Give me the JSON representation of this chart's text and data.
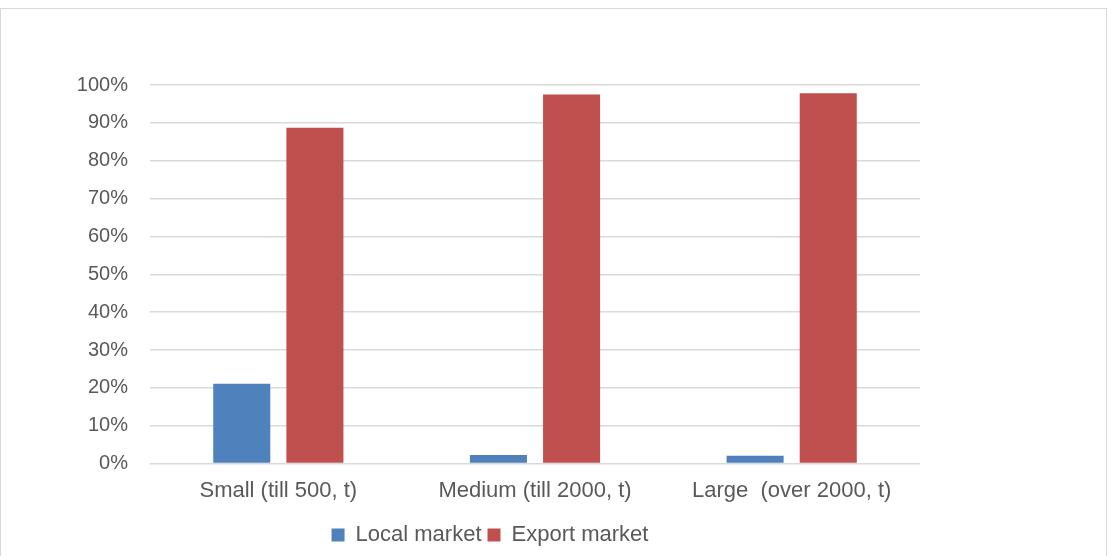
{
  "chart_data": {
    "type": "bar",
    "categories": [
      "Small (till 500, t)",
      "Medium (till 2000, t)",
      "Large  (over 2000, t)"
    ],
    "series": [
      {
        "name": "Local market",
        "color": "#4f81bd",
        "values": [
          21.1,
          2.3,
          2.1
        ]
      },
      {
        "name": "Export market",
        "color": "#c0504d",
        "values": [
          88.7,
          97.5,
          97.8
        ]
      }
    ],
    "ylim": [
      0,
      100
    ],
    "yticks": [
      {
        "value": 0,
        "label": "0%"
      },
      {
        "value": 10,
        "label": "10%"
      },
      {
        "value": 20,
        "label": "20%"
      },
      {
        "value": 30,
        "label": "30%"
      },
      {
        "value": 40,
        "label": "40%"
      },
      {
        "value": 50,
        "label": "50%"
      },
      {
        "value": 60,
        "label": "60%"
      },
      {
        "value": 70,
        "label": "70%"
      },
      {
        "value": 80,
        "label": "80%"
      },
      {
        "value": 90,
        "label": "90%"
      },
      {
        "value": 100,
        "label": "100%"
      }
    ],
    "grid": "y",
    "legend": "bottom"
  }
}
